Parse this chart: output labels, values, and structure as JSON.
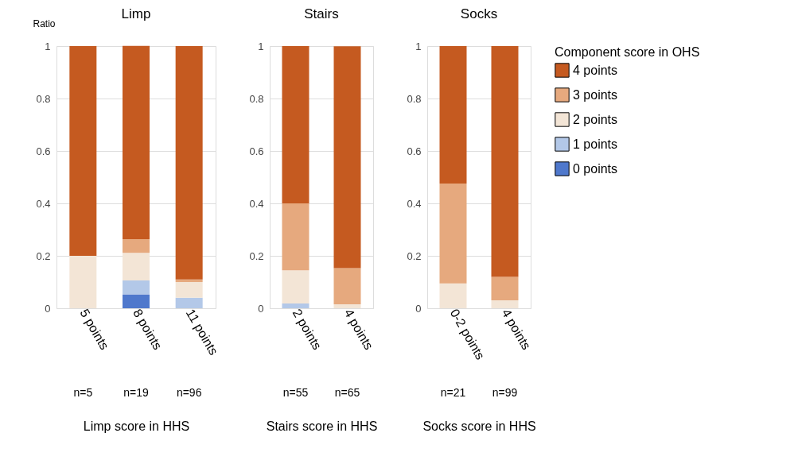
{
  "chart_data": [
    {
      "type": "bar",
      "stacked": true,
      "title": "Limp",
      "ylabel": "Ratio",
      "xlabel": "Limp score in HHS",
      "categories": [
        "5 points",
        "8 points",
        "11 points"
      ],
      "annotations": [
        "n=5",
        "n=19",
        "n=96"
      ],
      "ylim": [
        0,
        1
      ],
      "yticks": [
        0,
        0.2,
        0.4,
        0.6,
        0.8,
        1
      ],
      "grid": "y",
      "series": [
        {
          "color": "#4f78cc",
          "values": [
            null,
            0.053,
            null
          ]
        },
        {
          "color": "#b3c8e8",
          "values": [
            null,
            0.053,
            0.04
          ]
        },
        {
          "color": "#f3e5d6",
          "values": [
            0.2,
            0.105,
            0.06
          ]
        },
        {
          "color": "#e6a97e",
          "values": [
            null,
            0.053,
            0.01
          ]
        },
        {
          "color": "#c55a20",
          "values": [
            0.8,
            0.737,
            0.89
          ]
        }
      ]
    },
    {
      "type": "bar",
      "stacked": true,
      "title": "Stairs",
      "xlabel": "Stairs score in HHS",
      "categories": [
        "2 points",
        "4 points"
      ],
      "annotations": [
        "n=55",
        "n=65"
      ],
      "ylim": [
        0,
        1
      ],
      "yticks": [
        0,
        0.2,
        0.4,
        0.6,
        0.8,
        1
      ],
      "grid": "y",
      "series": [
        {
          "color": "#b3c8e8",
          "values": [
            0.018,
            null
          ]
        },
        {
          "color": "#f3e5d6",
          "values": [
            0.127,
            0.015
          ]
        },
        {
          "color": "#e6a97e",
          "values": [
            0.255,
            0.138
          ]
        },
        {
          "color": "#c55a20",
          "values": [
            0.6,
            0.846
          ]
        }
      ]
    },
    {
      "type": "bar",
      "stacked": true,
      "title": "Socks",
      "xlabel": "Socks score in HHS",
      "categories": [
        "0-2 points",
        "4 points"
      ],
      "annotations": [
        "n=21",
        "n=99"
      ],
      "ylim": [
        0,
        1
      ],
      "yticks": [
        0,
        0.2,
        0.4,
        0.6,
        0.8,
        1
      ],
      "grid": "y",
      "legend": "right",
      "legend_title": "Component score in OHS",
      "series": [
        {
          "name": "0 points",
          "color": "#4f78cc",
          "values": [
            null,
            null
          ]
        },
        {
          "name": "1 points",
          "color": "#b3c8e8",
          "values": [
            null,
            null
          ]
        },
        {
          "name": "2 points",
          "color": "#f3e5d6",
          "values": [
            0.095,
            0.03
          ]
        },
        {
          "name": "3 points",
          "color": "#e6a97e",
          "values": [
            0.381,
            0.09
          ]
        },
        {
          "name": "4 points",
          "color": "#c55a20",
          "values": [
            0.524,
            0.88
          ]
        }
      ]
    }
  ]
}
